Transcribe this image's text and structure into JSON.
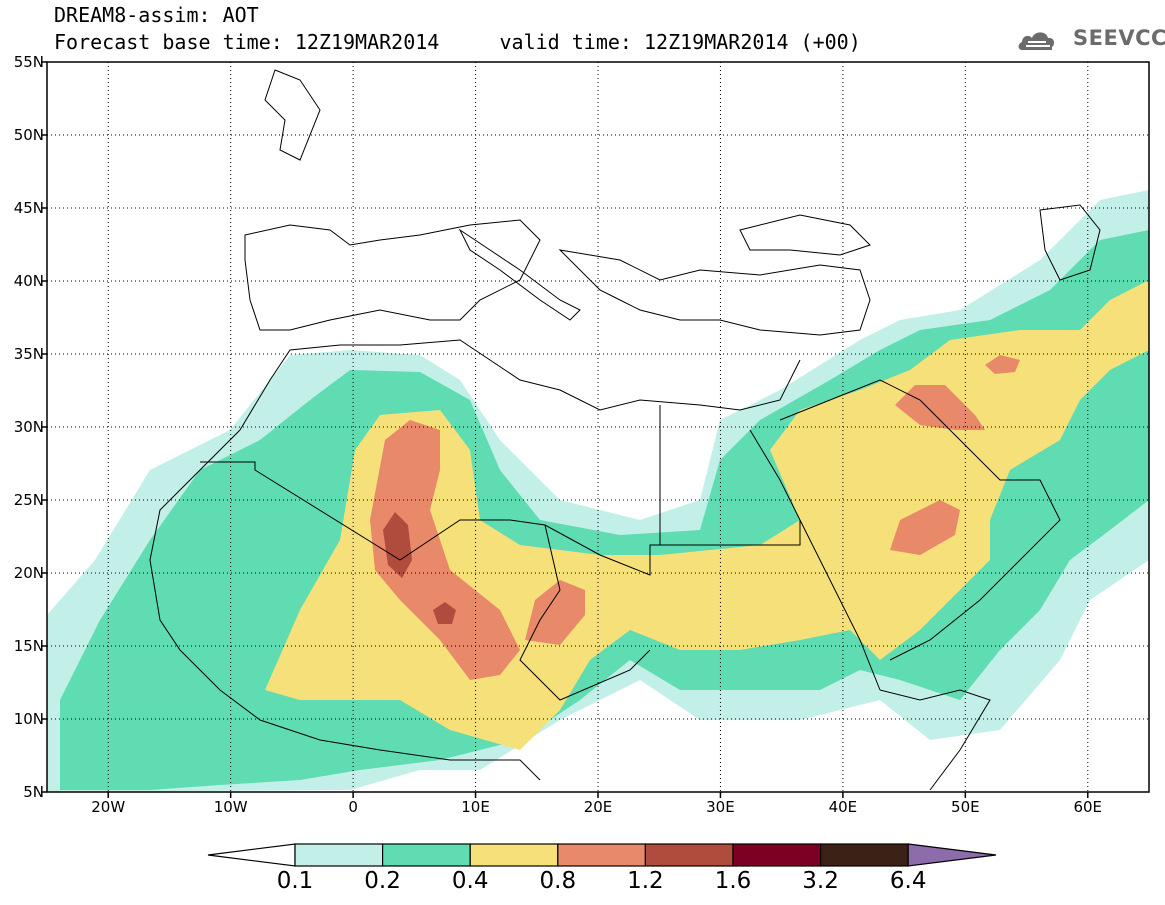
{
  "title": {
    "line1": "DREAM8-assim: AOT",
    "line2": "Forecast base time: 12Z19MAR2014     valid time: 12Z19MAR2014 (+00)"
  },
  "logo": {
    "text": "SEEVCCC",
    "icon": "cloud-icon"
  },
  "map": {
    "lat_range": [
      5,
      55
    ],
    "lon_range": [
      -25,
      65
    ],
    "lat_ticks": [
      "55N",
      "50N",
      "45N",
      "40N",
      "35N",
      "30N",
      "25N",
      "20N",
      "15N",
      "10N",
      "5N"
    ],
    "lat_tick_values": [
      55,
      50,
      45,
      40,
      35,
      30,
      25,
      20,
      15,
      10,
      5
    ],
    "lon_ticks": [
      "20W",
      "10W",
      "0",
      "10E",
      "20E",
      "30E",
      "40E",
      "50E",
      "60E"
    ],
    "lon_tick_values": [
      -20,
      -10,
      0,
      10,
      20,
      30,
      40,
      50,
      60
    ],
    "grid": true
  },
  "legend": {
    "labels": [
      "0.1",
      "0.2",
      "0.4",
      "0.8",
      "1.2",
      "1.6",
      "3.2",
      "6.4"
    ],
    "colors": [
      "#ffffff",
      "#c3efe9",
      "#5fdcb2",
      "#f5e07a",
      "#e8896a",
      "#b04c3e",
      "#7c0022",
      "#3b2216",
      "#8e6bab"
    ]
  }
}
